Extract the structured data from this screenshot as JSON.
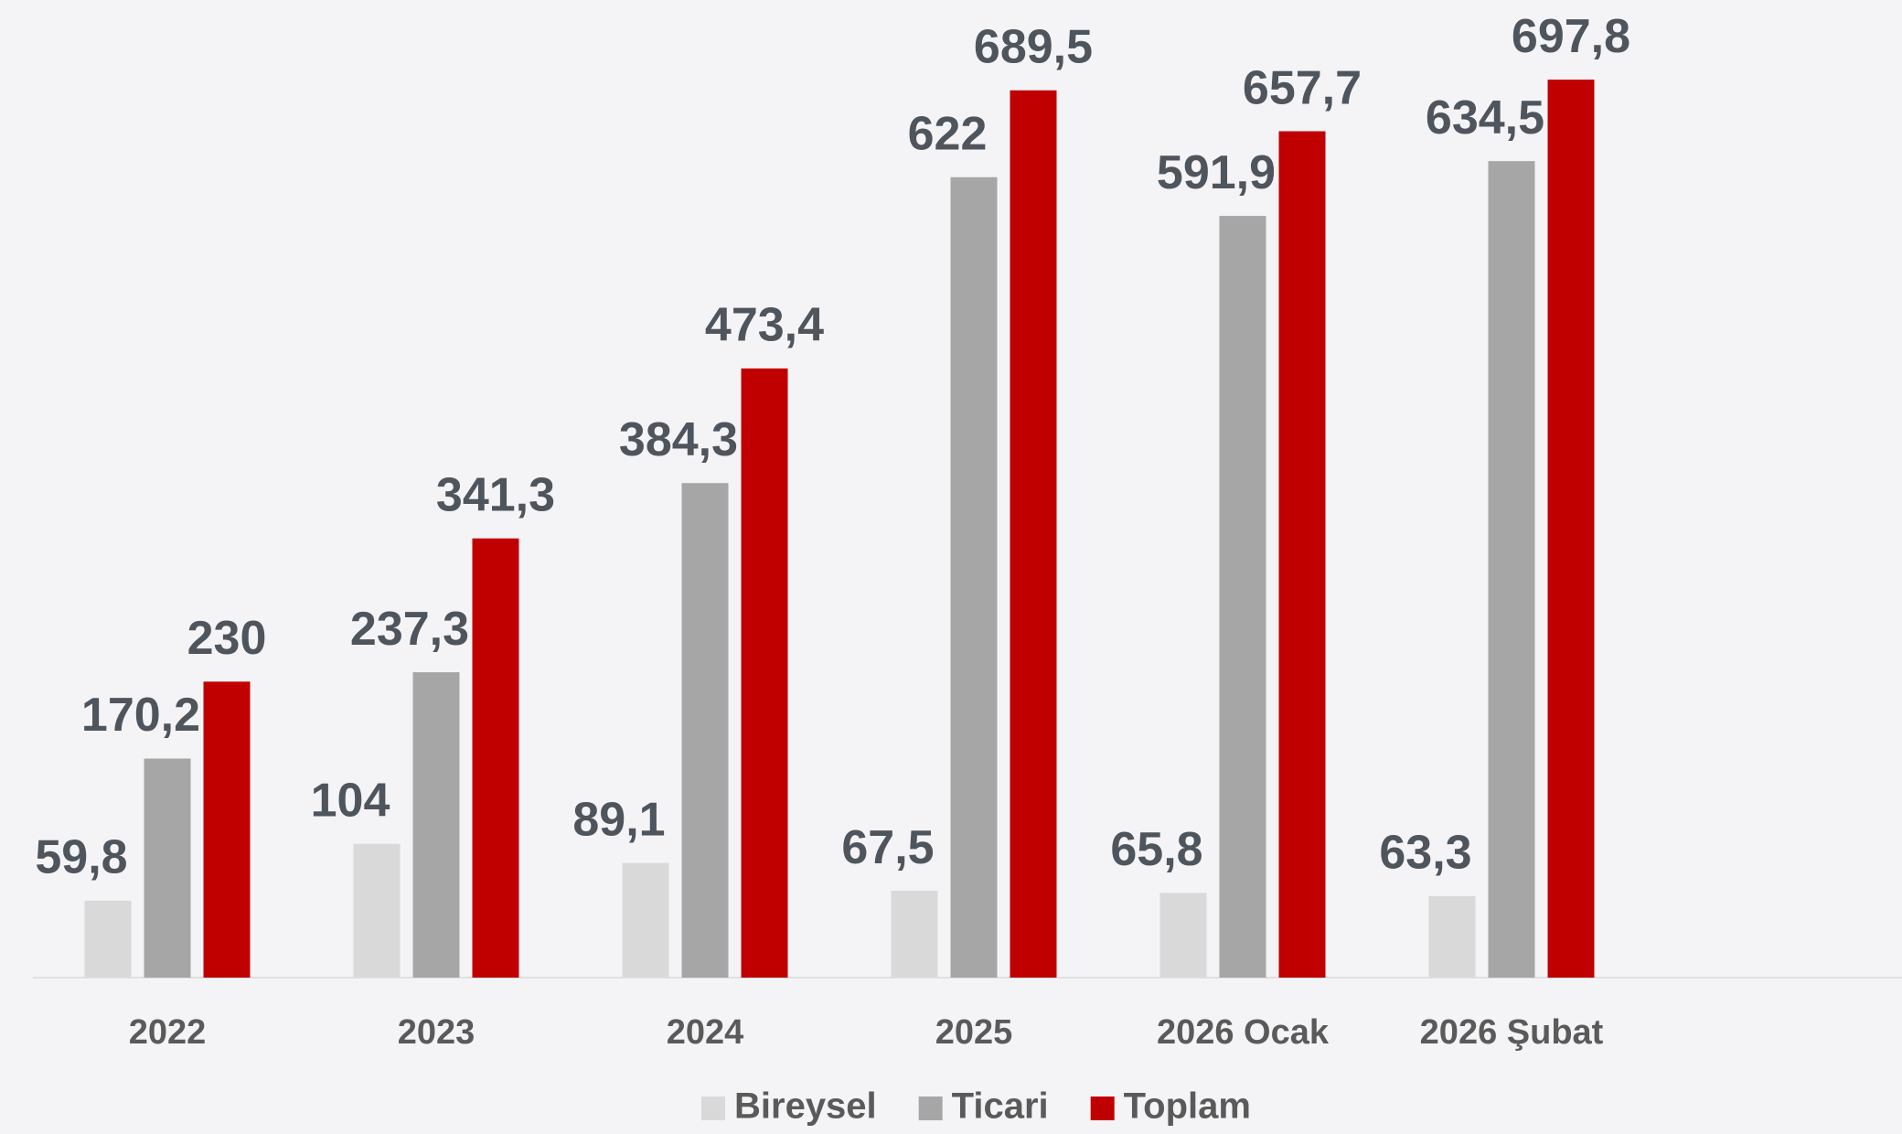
{
  "chart_data": {
    "type": "bar",
    "categories": [
      "2022",
      "2023",
      "2024",
      "2025",
      "2026 Ocak",
      "2026 Şubat"
    ],
    "series": [
      {
        "name": "Bireysel",
        "color": "#d9d9d9",
        "values": [
          59.8,
          104,
          89.1,
          67.5,
          65.8,
          63.3
        ],
        "value_labels": [
          "59,8",
          "104",
          "89,1",
          "67,5",
          "65,8",
          "63,3"
        ]
      },
      {
        "name": "Ticari",
        "color": "#a6a6a6",
        "values": [
          170.2,
          237.3,
          384.3,
          622,
          591.9,
          634.5
        ],
        "value_labels": [
          "170,2",
          "237,3",
          "384,3",
          "622",
          "591,9",
          "634,5"
        ]
      },
      {
        "name": "Toplam",
        "color": "#c00000",
        "values": [
          230,
          341.3,
          473.4,
          689.5,
          657.7,
          697.8
        ],
        "value_labels": [
          "230",
          "341,3",
          "473,4",
          "689,5",
          "657,7",
          "697,8"
        ]
      }
    ],
    "ylim": [
      0,
      700
    ],
    "legend": "bottom"
  }
}
